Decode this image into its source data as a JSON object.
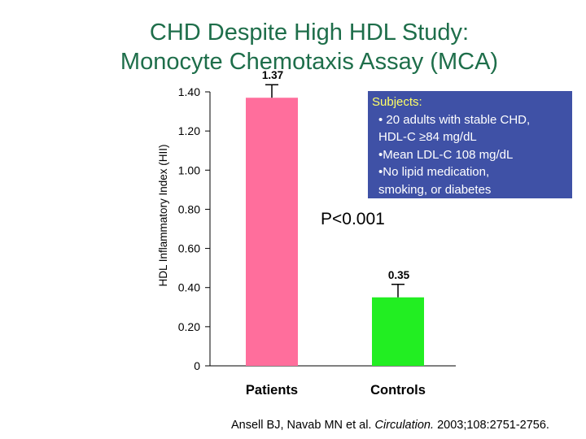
{
  "title": {
    "line1": "CHD Despite High HDL Study:",
    "line2": "Monocyte Chemotaxis Assay (MCA)"
  },
  "subjects": {
    "heading": "Subjects:",
    "lines": [
      "• 20 adults with stable CHD,",
      "HDL-C ≥84 mg/dL",
      "•Mean LDL-C 108 mg/dL",
      "•No lipid medication,",
      "smoking, or diabetes"
    ]
  },
  "p_value": "P<0.001",
  "citation": {
    "authors": "Ansell BJ, Navab MN et al.",
    "journal": "Circulation.",
    "details": "2003;108:2751-2756."
  },
  "colors": {
    "title": "#1e6e4a",
    "patients_bar": "#ff6e9c",
    "controls_bar": "#22ee22",
    "subjects_box": "#3f51a6",
    "subjects_heading": "#ffff66"
  },
  "chart_data": {
    "type": "bar",
    "categories": [
      "Patients",
      "Controls"
    ],
    "values": [
      1.37,
      0.35
    ],
    "data_labels": [
      "1.37",
      "0.35"
    ],
    "ylabel": "HDL Inflammatory Index (HII)",
    "ytick_labels": [
      "0",
      "0.20",
      "0.40",
      "0.60",
      "0.80",
      "1.00",
      "1.20",
      "1.40"
    ],
    "ytick_values": [
      0,
      0.2,
      0.4,
      0.6,
      0.8,
      1.0,
      1.2,
      1.4
    ],
    "ylim": [
      0,
      1.4
    ],
    "error_bars": true,
    "grid": false
  }
}
